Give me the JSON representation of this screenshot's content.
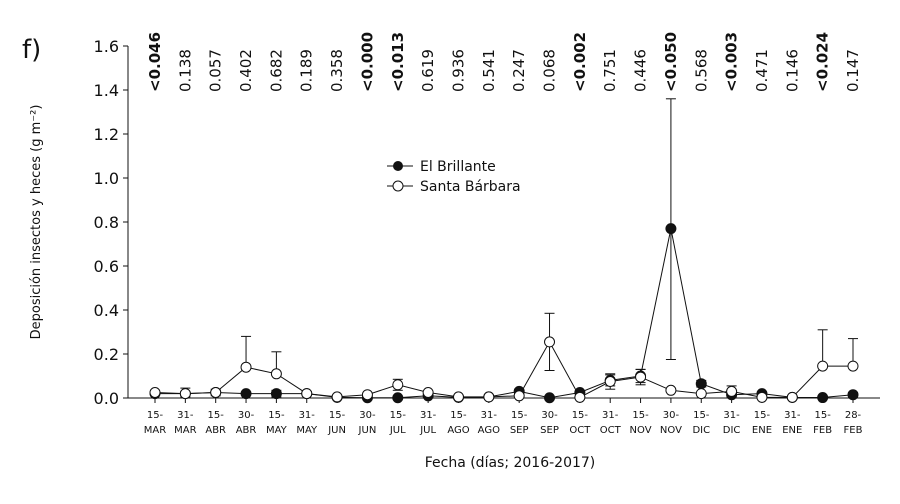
{
  "chart_data": {
    "type": "line",
    "panel_label": "f)",
    "xlabel": "Fecha (días; 2016-2017)",
    "ylabel": "Deposición insectos y heces (g m⁻²)",
    "ylim": [
      0,
      1.6
    ],
    "yticks": [
      "0.0",
      "0.2",
      "0.4",
      "0.6",
      "0.8",
      "1.0",
      "1.2",
      "1.4",
      "1.6"
    ],
    "categories": [
      [
        "15-",
        "MAR"
      ],
      [
        "31-",
        "MAR"
      ],
      [
        "15-",
        "ABR"
      ],
      [
        "30-",
        "ABR"
      ],
      [
        "15-",
        "MAY"
      ],
      [
        "31-",
        "MAY"
      ],
      [
        "15-",
        "JUN"
      ],
      [
        "30-",
        "JUN"
      ],
      [
        "15-",
        "JUL"
      ],
      [
        "31-",
        "JUL"
      ],
      [
        "15-",
        "AGO"
      ],
      [
        "31-",
        "AGO"
      ],
      [
        "15-",
        "SEP"
      ],
      [
        "30-",
        "SEP"
      ],
      [
        "15-",
        "OCT"
      ],
      [
        "31-",
        "OCT"
      ],
      [
        "15-",
        "NOV"
      ],
      [
        "30-",
        "NOV"
      ],
      [
        "15-",
        "DIC"
      ],
      [
        "31-",
        "DIC"
      ],
      [
        "15-",
        "ENE"
      ],
      [
        "31-",
        "ENE"
      ],
      [
        "15-",
        "FEB"
      ],
      [
        "28-",
        "FEB"
      ]
    ],
    "p_values": [
      "<0.046",
      "0.138",
      "0.057",
      "0.402",
      "0.682",
      "0.189",
      "0.358",
      "<0.000",
      "<0.013",
      "0.619",
      "0.936",
      "0.541",
      "0.247",
      "0.068",
      "<0.002",
      "0.751",
      "0.446",
      "<0.050",
      "0.568",
      "<0.003",
      "0.471",
      "0.146",
      "<0.024",
      "0.147"
    ],
    "legend": "top-center",
    "series": [
      {
        "name": "El Brillante",
        "marker": "filled",
        "values": [
          0.02,
          0.02,
          0.025,
          0.02,
          0.02,
          0.02,
          0.003,
          0.001,
          0.001,
          0.01,
          0.003,
          0.005,
          0.03,
          0.001,
          0.025,
          0.08,
          0.1,
          0.77,
          0.065,
          0.015,
          0.02,
          0.003,
          0.002,
          0.015
        ],
        "err_upper": [
          0.025,
          0.03,
          0.03,
          0.02,
          0.035,
          0.025,
          0.005,
          0.002,
          0.002,
          0.015,
          0.005,
          0.008,
          0.04,
          0.002,
          0.03,
          0.105,
          0.13,
          1.36,
          0.08,
          0.02,
          0.028,
          0.005,
          0.003,
          0.025
        ],
        "err_lower": [
          0.015,
          0.01,
          0.02,
          0.02,
          0.005,
          0.015,
          0.001,
          0,
          0,
          0.005,
          0.001,
          0.002,
          0.02,
          0,
          0.02,
          0.055,
          0.07,
          0.175,
          0.05,
          0.01,
          0.012,
          0.001,
          0.001,
          0.005
        ]
      },
      {
        "name": "Santa Bárbara",
        "marker": "open",
        "values": [
          0.025,
          0.02,
          0.025,
          0.14,
          0.11,
          0.02,
          0.005,
          0.015,
          0.06,
          0.025,
          0.005,
          0.005,
          0.01,
          0.255,
          0.003,
          0.075,
          0.095,
          0.035,
          0.02,
          0.03,
          0.003,
          0.003,
          0.145,
          0.145
        ],
        "err_upper": [
          0.035,
          0.045,
          0.04,
          0.28,
          0.21,
          0.03,
          0.008,
          0.02,
          0.085,
          0.03,
          0.008,
          0.008,
          0.015,
          0.385,
          0.005,
          0.11,
          0.13,
          0.04,
          0.025,
          0.055,
          0.005,
          0.005,
          0.31,
          0.27
        ],
        "err_lower": [
          0.015,
          0.005,
          0.01,
          0.14,
          0.11,
          0.01,
          0.002,
          0.01,
          0.035,
          0.02,
          0.002,
          0.002,
          0.005,
          0.125,
          0.001,
          0.04,
          0.06,
          0.03,
          0.015,
          0.005,
          0.001,
          0.001,
          0.145,
          0.145
        ]
      }
    ]
  }
}
